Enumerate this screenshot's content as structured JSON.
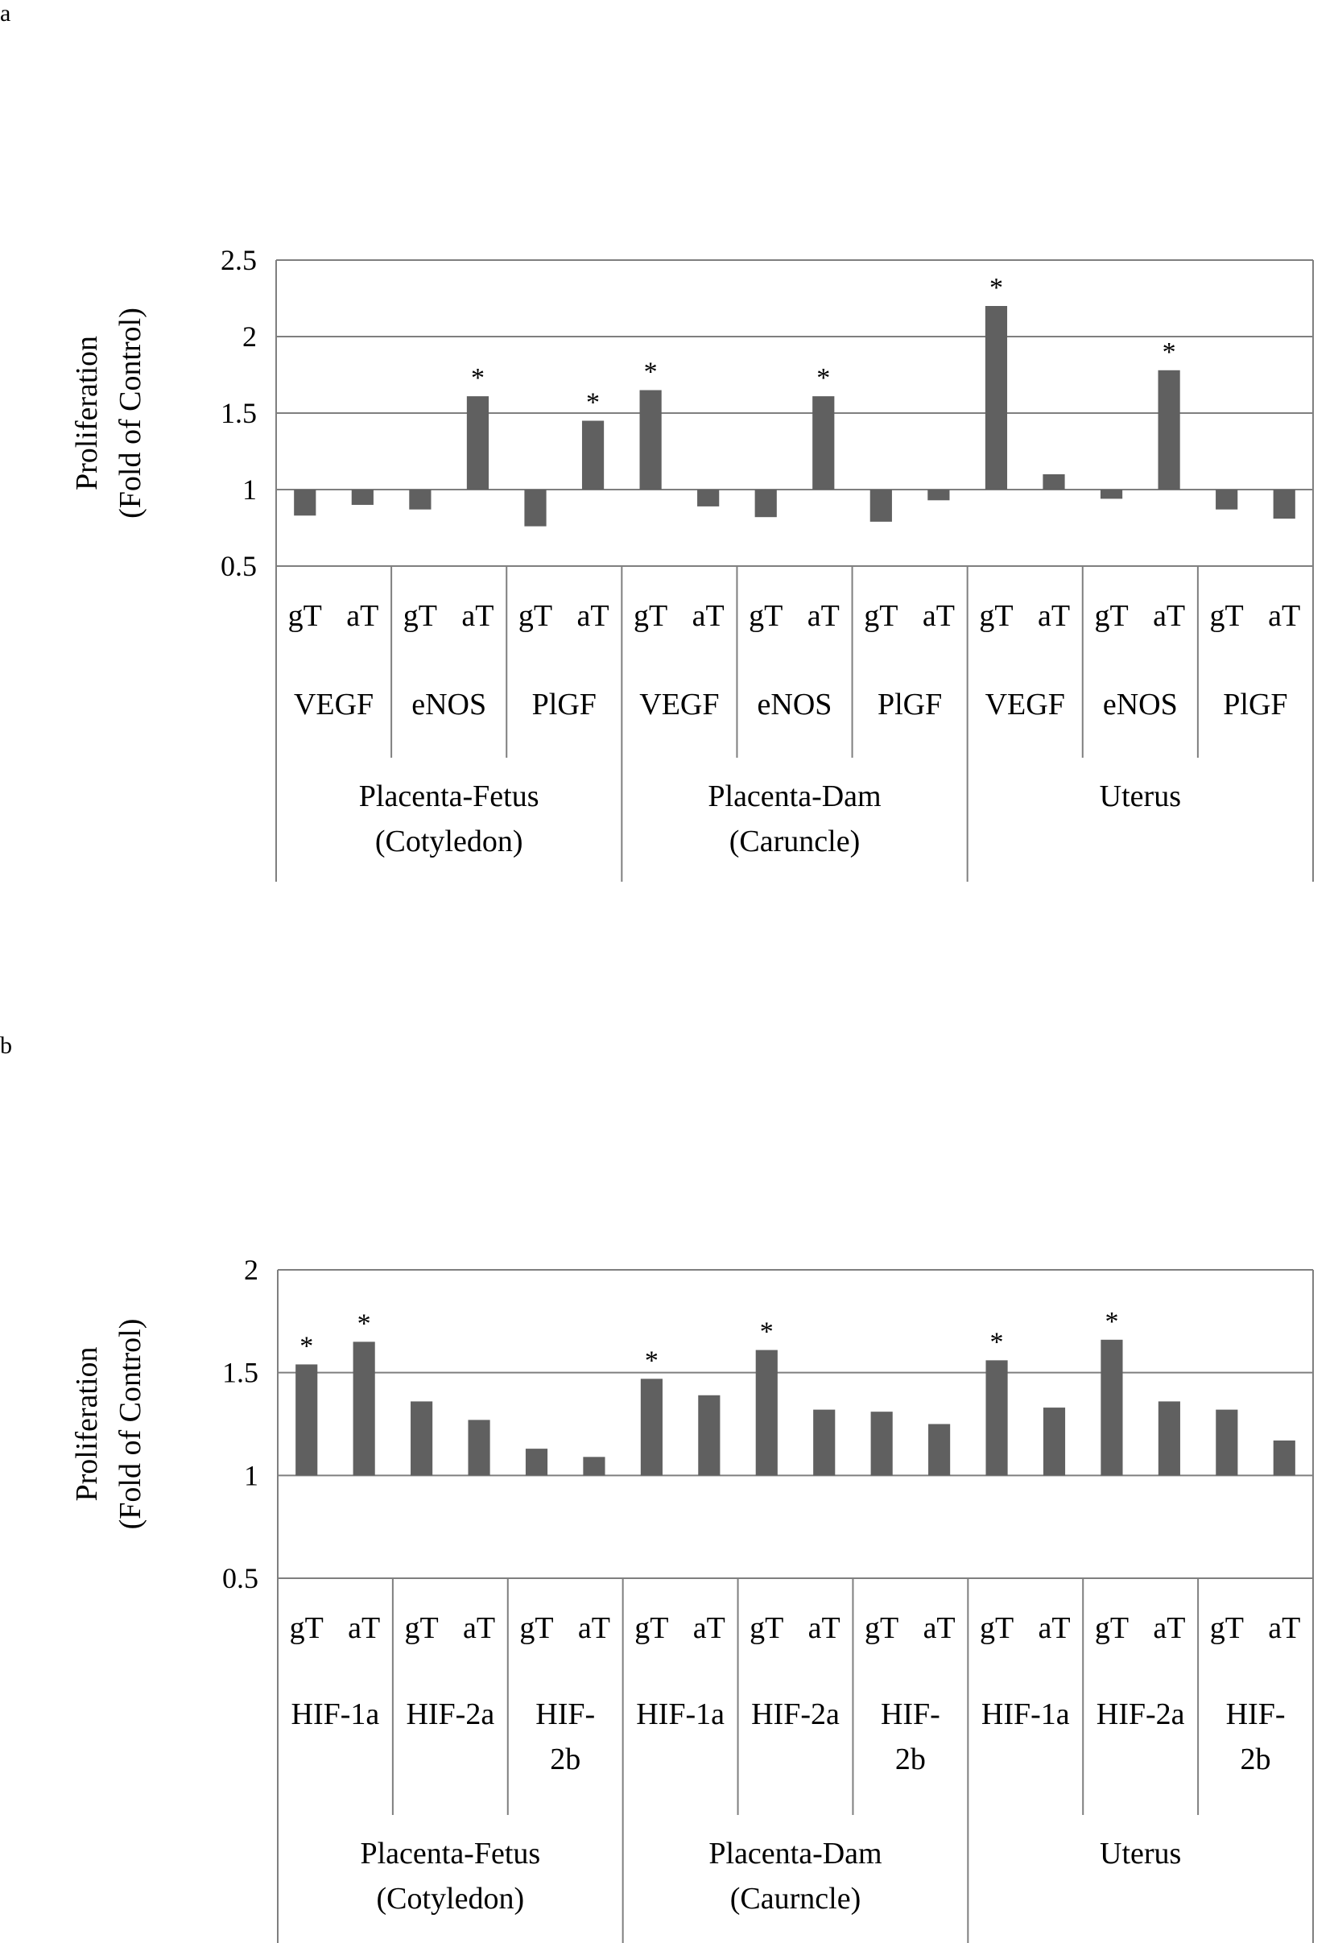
{
  "panels": [
    {
      "label": "a",
      "chart_data": {
        "type": "bar",
        "ylabel": [
          "Proliferation",
          "(Fold of Control)"
        ],
        "ylim": [
          0.5,
          2.5
        ],
        "yticks": [
          "0.5",
          "1",
          "1.5",
          "2",
          "2.5"
        ],
        "baseline": 1,
        "grid": true,
        "bar_color": "#606060",
        "bar_labels": [
          "gT",
          "aT",
          "gT",
          "aT",
          "gT",
          "aT",
          "gT",
          "aT",
          "gT",
          "aT",
          "gT",
          "aT",
          "gT",
          "aT",
          "gT",
          "aT",
          "gT",
          "aT"
        ],
        "genes": [
          [
            "VEGF"
          ],
          [
            "eNOS"
          ],
          [
            "PlGF"
          ],
          [
            "VEGF"
          ],
          [
            "eNOS"
          ],
          [
            "PlGF"
          ],
          [
            "VEGF"
          ],
          [
            "eNOS"
          ],
          [
            "PlGF"
          ]
        ],
        "groups": [
          [
            "Placenta-Fetus",
            "(Cotyledon)"
          ],
          [
            "Placenta-Dam",
            "(Caruncle)"
          ],
          [
            "Uterus"
          ]
        ],
        "values": [
          0.83,
          0.9,
          0.87,
          1.61,
          0.76,
          1.45,
          1.65,
          0.89,
          0.82,
          1.61,
          0.79,
          0.93,
          2.2,
          1.1,
          0.94,
          1.78,
          0.87,
          0.81
        ],
        "significant": [
          false,
          false,
          false,
          true,
          false,
          true,
          true,
          false,
          false,
          true,
          false,
          false,
          true,
          false,
          false,
          true,
          false,
          false
        ],
        "sig_marker": "*"
      }
    },
    {
      "label": "b",
      "chart_data": {
        "type": "bar",
        "ylabel": [
          "Proliferation",
          "(Fold of Control)"
        ],
        "ylim": [
          0.5,
          2
        ],
        "yticks": [
          "0.5",
          "1",
          "1.5",
          "2"
        ],
        "baseline": 1,
        "grid": true,
        "bar_color": "#606060",
        "bar_labels": [
          "gT",
          "aT",
          "gT",
          "aT",
          "gT",
          "aT",
          "gT",
          "aT",
          "gT",
          "aT",
          "gT",
          "aT",
          "gT",
          "aT",
          "gT",
          "aT",
          "gT",
          "aT"
        ],
        "genes": [
          [
            "HIF-1a"
          ],
          [
            "HIF-2a"
          ],
          [
            "HIF-",
            "2b"
          ],
          [
            "HIF-1a"
          ],
          [
            "HIF-2a"
          ],
          [
            "HIF-",
            "2b"
          ],
          [
            "HIF-1a"
          ],
          [
            "HIF-2a"
          ],
          [
            "HIF-",
            "2b"
          ]
        ],
        "groups": [
          [
            "Placenta-Fetus",
            "(Cotyledon)"
          ],
          [
            "Placenta-Dam",
            "(Caurncle)"
          ],
          [
            "Uterus"
          ]
        ],
        "values": [
          1.54,
          1.65,
          1.36,
          1.27,
          1.13,
          1.09,
          1.47,
          1.39,
          1.61,
          1.32,
          1.31,
          1.25,
          1.56,
          1.33,
          1.66,
          1.36,
          1.32,
          1.17
        ],
        "significant": [
          true,
          true,
          false,
          false,
          false,
          false,
          true,
          false,
          true,
          false,
          false,
          false,
          true,
          false,
          true,
          false,
          false,
          false
        ],
        "sig_marker": "*"
      }
    }
  ]
}
